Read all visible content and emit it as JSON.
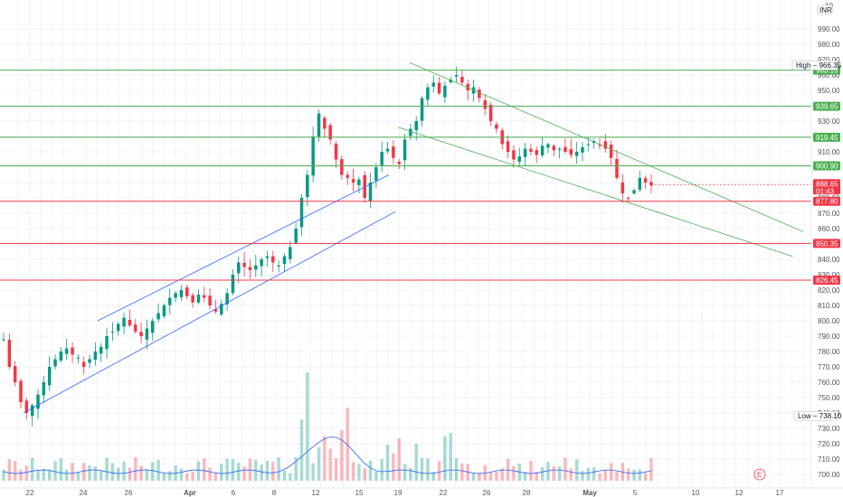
{
  "chart_data": {
    "type": "candlestick",
    "currency_badge": "INR",
    "y_axis": {
      "ticks": [
        700,
        710,
        720,
        730,
        740,
        750,
        760,
        770,
        780,
        790,
        800,
        810,
        820,
        830,
        840,
        850,
        860,
        870,
        880,
        890,
        900,
        910,
        920,
        930,
        940,
        950,
        960,
        970,
        980,
        990
      ]
    },
    "x_axis": {
      "tick_labels": [
        "22",
        "24",
        "26",
        "Apr",
        "6",
        "8",
        "12",
        "15",
        "19",
        "22",
        "26",
        "28",
        "May",
        "5",
        "10",
        "12",
        "17"
      ]
    },
    "horizontal_levels": [
      {
        "value": 963.15,
        "label": "963.15",
        "color": "#4caf50"
      },
      {
        "value": 939.65,
        "label": "939.65",
        "color": "#4caf50"
      },
      {
        "value": 919.45,
        "label": "919.45",
        "color": "#4caf50"
      },
      {
        "value": 900.9,
        "label": "900.90",
        "color": "#4caf50"
      },
      {
        "value": 877.8,
        "label": "877.80",
        "color": "#f23645"
      },
      {
        "value": 850.35,
        "label": "850.35",
        "color": "#f23645"
      },
      {
        "value": 826.45,
        "label": "826.45",
        "color": "#f23645"
      }
    ],
    "high": {
      "value": 966.35,
      "label": "High",
      "text": "966.35"
    },
    "low": {
      "value": 738.1,
      "label": "Low",
      "text": "738.10"
    },
    "current_price": {
      "value": 888.65,
      "text": "888.65",
      "countdown": "01:43"
    },
    "close_path": [
      788,
      770,
      760,
      747,
      740,
      745,
      752,
      760,
      770,
      775,
      780,
      782,
      778,
      776,
      770,
      775,
      780,
      783,
      790,
      793,
      798,
      802,
      797,
      793,
      790,
      795,
      800,
      805,
      810,
      815,
      818,
      820,
      816,
      812,
      817,
      815,
      810,
      806,
      811,
      818,
      830,
      838,
      835,
      833,
      836,
      840,
      842,
      838,
      836,
      842,
      848,
      860,
      880,
      895,
      920,
      935,
      925,
      918,
      905,
      895,
      893,
      890,
      892,
      880,
      890,
      900,
      910,
      912,
      906,
      902,
      918,
      925,
      930,
      945,
      952,
      955,
      948,
      953,
      957,
      960,
      955,
      950,
      952,
      945,
      938,
      930,
      925,
      915,
      910,
      905,
      907,
      912,
      910,
      908,
      914,
      915,
      911,
      912,
      910,
      908,
      910,
      913,
      915,
      917,
      914,
      912,
      906,
      893,
      883,
      880,
      885,
      893,
      890,
      888
    ],
    "colors": {
      "up": "#089981",
      "down": "#f23645",
      "volume_ma": "#2962ff",
      "channel_up": "#2962ff",
      "channel_down": "#4caf50",
      "grid": "#f0f3fa"
    }
  },
  "ui": {
    "axis_label": "10",
    "event_marker": "E"
  }
}
